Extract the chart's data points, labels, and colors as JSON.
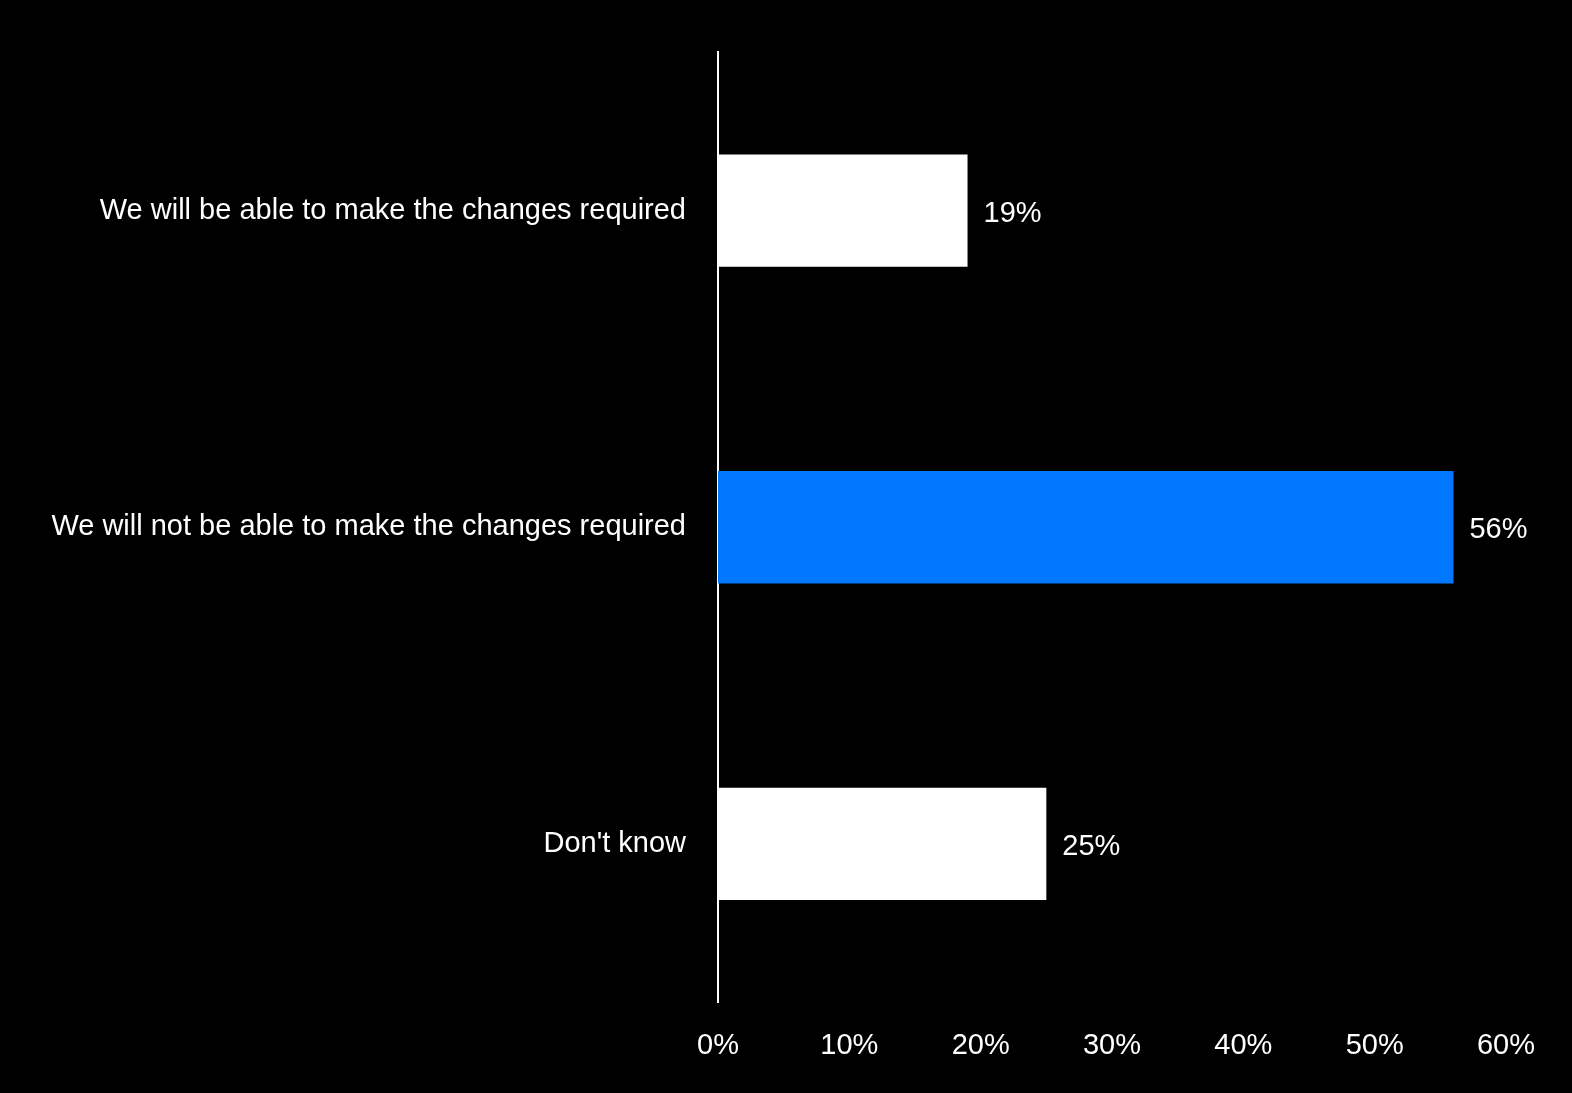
{
  "chart_data": {
    "type": "bar",
    "orientation": "horizontal",
    "categories": [
      "We will be able to make the changes required",
      "We will not be able to make the changes required",
      "Don't know"
    ],
    "values": [
      19,
      56,
      25
    ],
    "colors": [
      "#ffffff",
      "#0077ff",
      "#ffffff"
    ],
    "value_labels": [
      "19%",
      "56%",
      "25%"
    ],
    "xlim": [
      0,
      60
    ],
    "xticks": [
      {
        "value": 0,
        "label": "0%"
      },
      {
        "value": 10,
        "label": "10%"
      },
      {
        "value": 20,
        "label": "20%"
      },
      {
        "value": 30,
        "label": "30%"
      },
      {
        "value": 40,
        "label": "40%"
      },
      {
        "value": 50,
        "label": "50%"
      },
      {
        "value": 60,
        "label": "60%"
      }
    ]
  }
}
